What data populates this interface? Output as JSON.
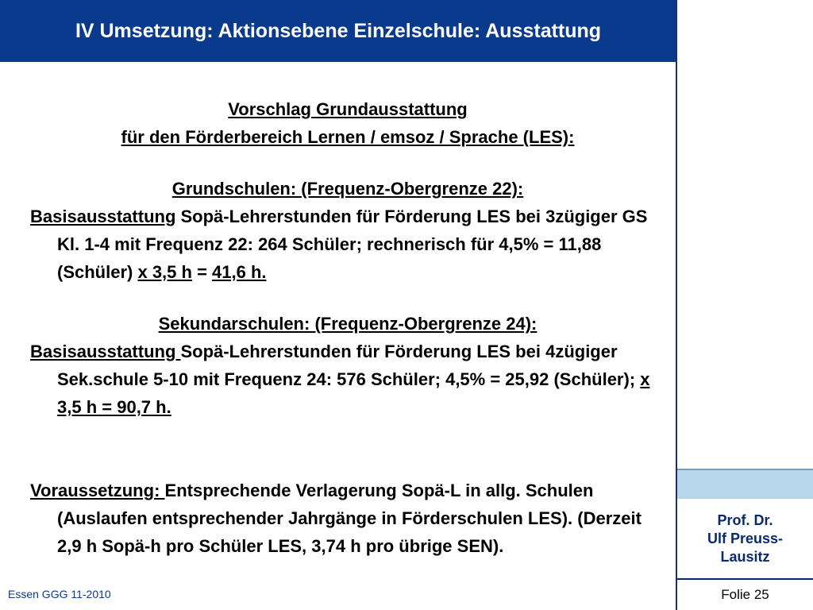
{
  "header": {
    "title": "IV Umsetzung: Aktionsebene Einzelschule: Ausstattung"
  },
  "content": {
    "heading_line1": "Vorschlag Grundausstattung",
    "heading_line2": "für den Förderbereich Lernen / emsoz / Sprache (LES):",
    "grundschulen": {
      "heading": "Grundschulen: (Frequenz-Obergrenze 22):",
      "label": "Basisausstattung",
      "text_part1": " Sopä-Lehrerstunden für Förderung LES bei 3zügiger GS Kl. 1-4 mit Frequenz 22: 264 Schüler; rechnerisch für 4,5% = 11,88 (Schüler) ",
      "factor": "x 3,5 h",
      "equals": " = ",
      "result": "41,6 h."
    },
    "sekundarschulen": {
      "heading": "Sekundarschulen: (Frequenz-Obergrenze 24):",
      "label": "Basisausstattung ",
      "text_part1": "Sopä-Lehrerstunden für Förderung LES bei 4zügiger Sek.schule 5-10 mit Frequenz 24: 576 Schüler; 4,5% = 25,92 (Schüler); ",
      "factor": "x 3,5 h",
      "equals": " =",
      "result": " 90,7 h."
    },
    "voraussetzung": {
      "label": "Voraussetzung: ",
      "text": "Entsprechende Verlagerung Sopä-L in allg. Schulen (Auslaufen entsprechender Jahrgänge in Förderschulen LES). (Derzeit 2,9 h Sopä-h pro Schüler LES, 3,74 h pro übrige SEN)."
    }
  },
  "sidebar": {
    "author_line1": "Prof. Dr.",
    "author_line2": "Ulf Preuss-",
    "author_line3": "Lausitz",
    "slide_number": "Folie 25"
  },
  "footer": {
    "text": "Essen GGG 11-2010"
  },
  "colors": {
    "title_bg": "#0a3a8c",
    "band": "#b7d6ec",
    "author_text": "#0a2a6e"
  }
}
